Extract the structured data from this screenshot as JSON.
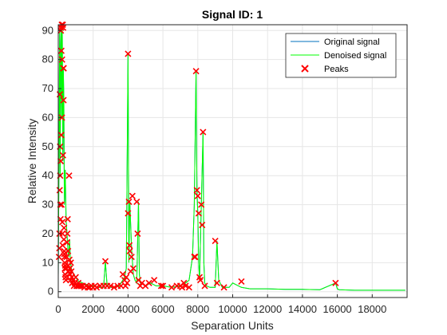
{
  "chart_data": {
    "type": "line",
    "title": "Signal ID: 1",
    "xlabel": "Separation Units",
    "ylabel": "Relative Intensity",
    "xlim": [
      0,
      20000
    ],
    "ylim": [
      -2,
      92
    ],
    "xticks": [
      0,
      2000,
      4000,
      6000,
      8000,
      10000,
      12000,
      14000,
      16000,
      18000
    ],
    "xtick_labels": [
      "0",
      "2000",
      "4000",
      "6000",
      "8000",
      "10000",
      "12000",
      "14000",
      "16000",
      "18000"
    ],
    "yticks": [
      0,
      10,
      20,
      30,
      40,
      50,
      60,
      70,
      80,
      90
    ],
    "ytick_labels": [
      "0",
      "10",
      "20",
      "30",
      "40",
      "50",
      "60",
      "70",
      "80",
      "90"
    ],
    "grid": true,
    "legend_position": "top-right",
    "series": [
      {
        "name": "Original signal",
        "color": "#0072BD",
        "x": [
          0,
          50,
          80,
          110,
          140,
          170,
          200,
          230,
          260,
          290,
          320,
          350,
          400,
          450,
          500,
          550,
          600,
          650,
          700,
          750,
          800,
          900,
          1000,
          1100,
          1200,
          1400,
          1600,
          1800,
          2000,
          2300,
          2600,
          2700,
          2800,
          3000,
          3200,
          3500,
          3800,
          3900,
          4000,
          4050,
          4100,
          4200,
          4300,
          4400,
          4500,
          4600,
          4650,
          4700,
          4900,
          5000,
          5300,
          5600,
          6000,
          6500,
          7000,
          7300,
          7500,
          7700,
          7800,
          7900,
          7950,
          8000,
          8050,
          8100,
          8200,
          8300,
          8350,
          8400,
          8500,
          8700,
          9000,
          9100,
          9200,
          9400,
          9800,
          10000,
          10500,
          11000,
          11500,
          12000,
          13000,
          14000,
          15000,
          15900,
          16000,
          16100,
          17000,
          18000,
          19000,
          19900
        ],
        "y": [
          5,
          55,
          90,
          40,
          85,
          91,
          60,
          92,
          45,
          77,
          66,
          30,
          42,
          25,
          20,
          15,
          12,
          18,
          10,
          8,
          7,
          6,
          5,
          4,
          3.5,
          3,
          2.5,
          2,
          2,
          1.5,
          1.5,
          10.5,
          2,
          1.5,
          1.5,
          2,
          5,
          8,
          82,
          10,
          31,
          15,
          6,
          4,
          3,
          31,
          6,
          3,
          2.5,
          2,
          3,
          2,
          2,
          1.5,
          2,
          3,
          4,
          12,
          30,
          76,
          35,
          27,
          10,
          4,
          30,
          55,
          10,
          3,
          2,
          1.5,
          1.5,
          17.5,
          4,
          1.5,
          1.5,
          3,
          1.5,
          1,
          1,
          1,
          0.8,
          0.8,
          0.7,
          3,
          1,
          0.7,
          0.5,
          0.5,
          0.5,
          0.5
        ]
      },
      {
        "name": "Denoised signal",
        "color": "#00FF00",
        "x": [
          0,
          50,
          80,
          110,
          140,
          170,
          200,
          230,
          260,
          290,
          320,
          350,
          400,
          450,
          500,
          550,
          600,
          650,
          700,
          750,
          800,
          900,
          1000,
          1100,
          1200,
          1400,
          1600,
          1800,
          2000,
          2300,
          2600,
          2700,
          2800,
          3000,
          3200,
          3500,
          3800,
          3900,
          4000,
          4050,
          4100,
          4200,
          4300,
          4400,
          4500,
          4600,
          4650,
          4700,
          4900,
          5000,
          5300,
          5600,
          6000,
          6500,
          7000,
          7300,
          7500,
          7700,
          7800,
          7900,
          7950,
          8000,
          8050,
          8100,
          8200,
          8300,
          8350,
          8400,
          8500,
          8700,
          9000,
          9100,
          9200,
          9400,
          9800,
          10000,
          10500,
          11000,
          11500,
          12000,
          13000,
          14000,
          15000,
          15900,
          16000,
          16100,
          17000,
          18000,
          19000,
          19900
        ],
        "y": [
          5,
          55,
          90,
          40,
          85,
          91,
          60,
          92,
          45,
          77,
          66,
          30,
          42,
          25,
          20,
          15,
          12,
          18,
          10,
          8,
          7,
          6,
          5,
          4,
          3.5,
          3,
          2.5,
          2,
          2,
          1.5,
          1.5,
          10.5,
          2,
          1.5,
          1.5,
          2,
          5,
          8,
          82,
          10,
          31,
          15,
          6,
          4,
          3,
          31,
          6,
          3,
          2.5,
          2,
          3,
          2,
          2,
          1.5,
          2,
          3,
          4,
          12,
          30,
          76,
          35,
          27,
          10,
          4,
          30,
          55,
          10,
          3,
          2,
          1.5,
          1.5,
          17.5,
          4,
          1.5,
          1.5,
          3,
          1.5,
          1,
          1,
          1,
          0.8,
          0.8,
          0.7,
          3,
          1,
          0.7,
          0.5,
          0.5,
          0.5,
          0.5
        ]
      }
    ],
    "peaks": {
      "name": "Peaks",
      "color": "#FF0000",
      "x": [
        40,
        60,
        70,
        80,
        90,
        100,
        110,
        120,
        130,
        140,
        150,
        160,
        170,
        180,
        190,
        200,
        210,
        220,
        230,
        240,
        250,
        260,
        270,
        280,
        290,
        300,
        310,
        320,
        330,
        340,
        350,
        360,
        370,
        380,
        390,
        400,
        420,
        440,
        460,
        480,
        500,
        520,
        540,
        560,
        580,
        600,
        620,
        640,
        660,
        680,
        700,
        720,
        750,
        780,
        800,
        850,
        900,
        950,
        1000,
        1050,
        1100,
        1150,
        1200,
        1300,
        1400,
        1500,
        1600,
        1700,
        1800,
        1900,
        2000,
        2100,
        2200,
        2400,
        2600,
        2700,
        2800,
        3000,
        3200,
        3400,
        3600,
        3700,
        3800,
        3850,
        3900,
        3950,
        4000,
        4000,
        4050,
        4080,
        4100,
        4150,
        4200,
        4250,
        4300,
        4500,
        4550,
        4600,
        4700,
        4800,
        5000,
        5200,
        5500,
        5900,
        6000,
        6500,
        6800,
        7000,
        7100,
        7200,
        7300,
        7500,
        7800,
        7850,
        7900,
        7950,
        8000,
        8050,
        8100,
        8150,
        8200,
        8250,
        8300,
        8400,
        9000,
        9100,
        9500,
        10500,
        15900
      ],
      "y": [
        12,
        15,
        20,
        35,
        68,
        50,
        40,
        30,
        25,
        45,
        90,
        91,
        54,
        83,
        30,
        92,
        60,
        80,
        24,
        20,
        16,
        92,
        47,
        91,
        77,
        66,
        77,
        18,
        22,
        14,
        13,
        12,
        10,
        8,
        6,
        9,
        5,
        4,
        8,
        12,
        17,
        20,
        25,
        14,
        9,
        7,
        40,
        11,
        8,
        6,
        4,
        10,
        7,
        5,
        3,
        4,
        2,
        3,
        5,
        2,
        2,
        3,
        2,
        2,
        2,
        1.5,
        2,
        1.5,
        1.5,
        2,
        1.5,
        2,
        1.5,
        2,
        2,
        10.5,
        2,
        2,
        1.5,
        2,
        2,
        6,
        4,
        2,
        5,
        3,
        82,
        27,
        31,
        16,
        14,
        7,
        12,
        33,
        8,
        31,
        20,
        4,
        2,
        3,
        2,
        3,
        4,
        2,
        2,
        1.5,
        2,
        2,
        1.5,
        3,
        2,
        1.5,
        12,
        12,
        76,
        35,
        33,
        27,
        5,
        4,
        30,
        23,
        55,
        2,
        17.5,
        3,
        1.5,
        3.5,
        3
      ]
    },
    "legend": [
      "Original signal",
      "Denoised signal",
      "Peaks"
    ]
  }
}
